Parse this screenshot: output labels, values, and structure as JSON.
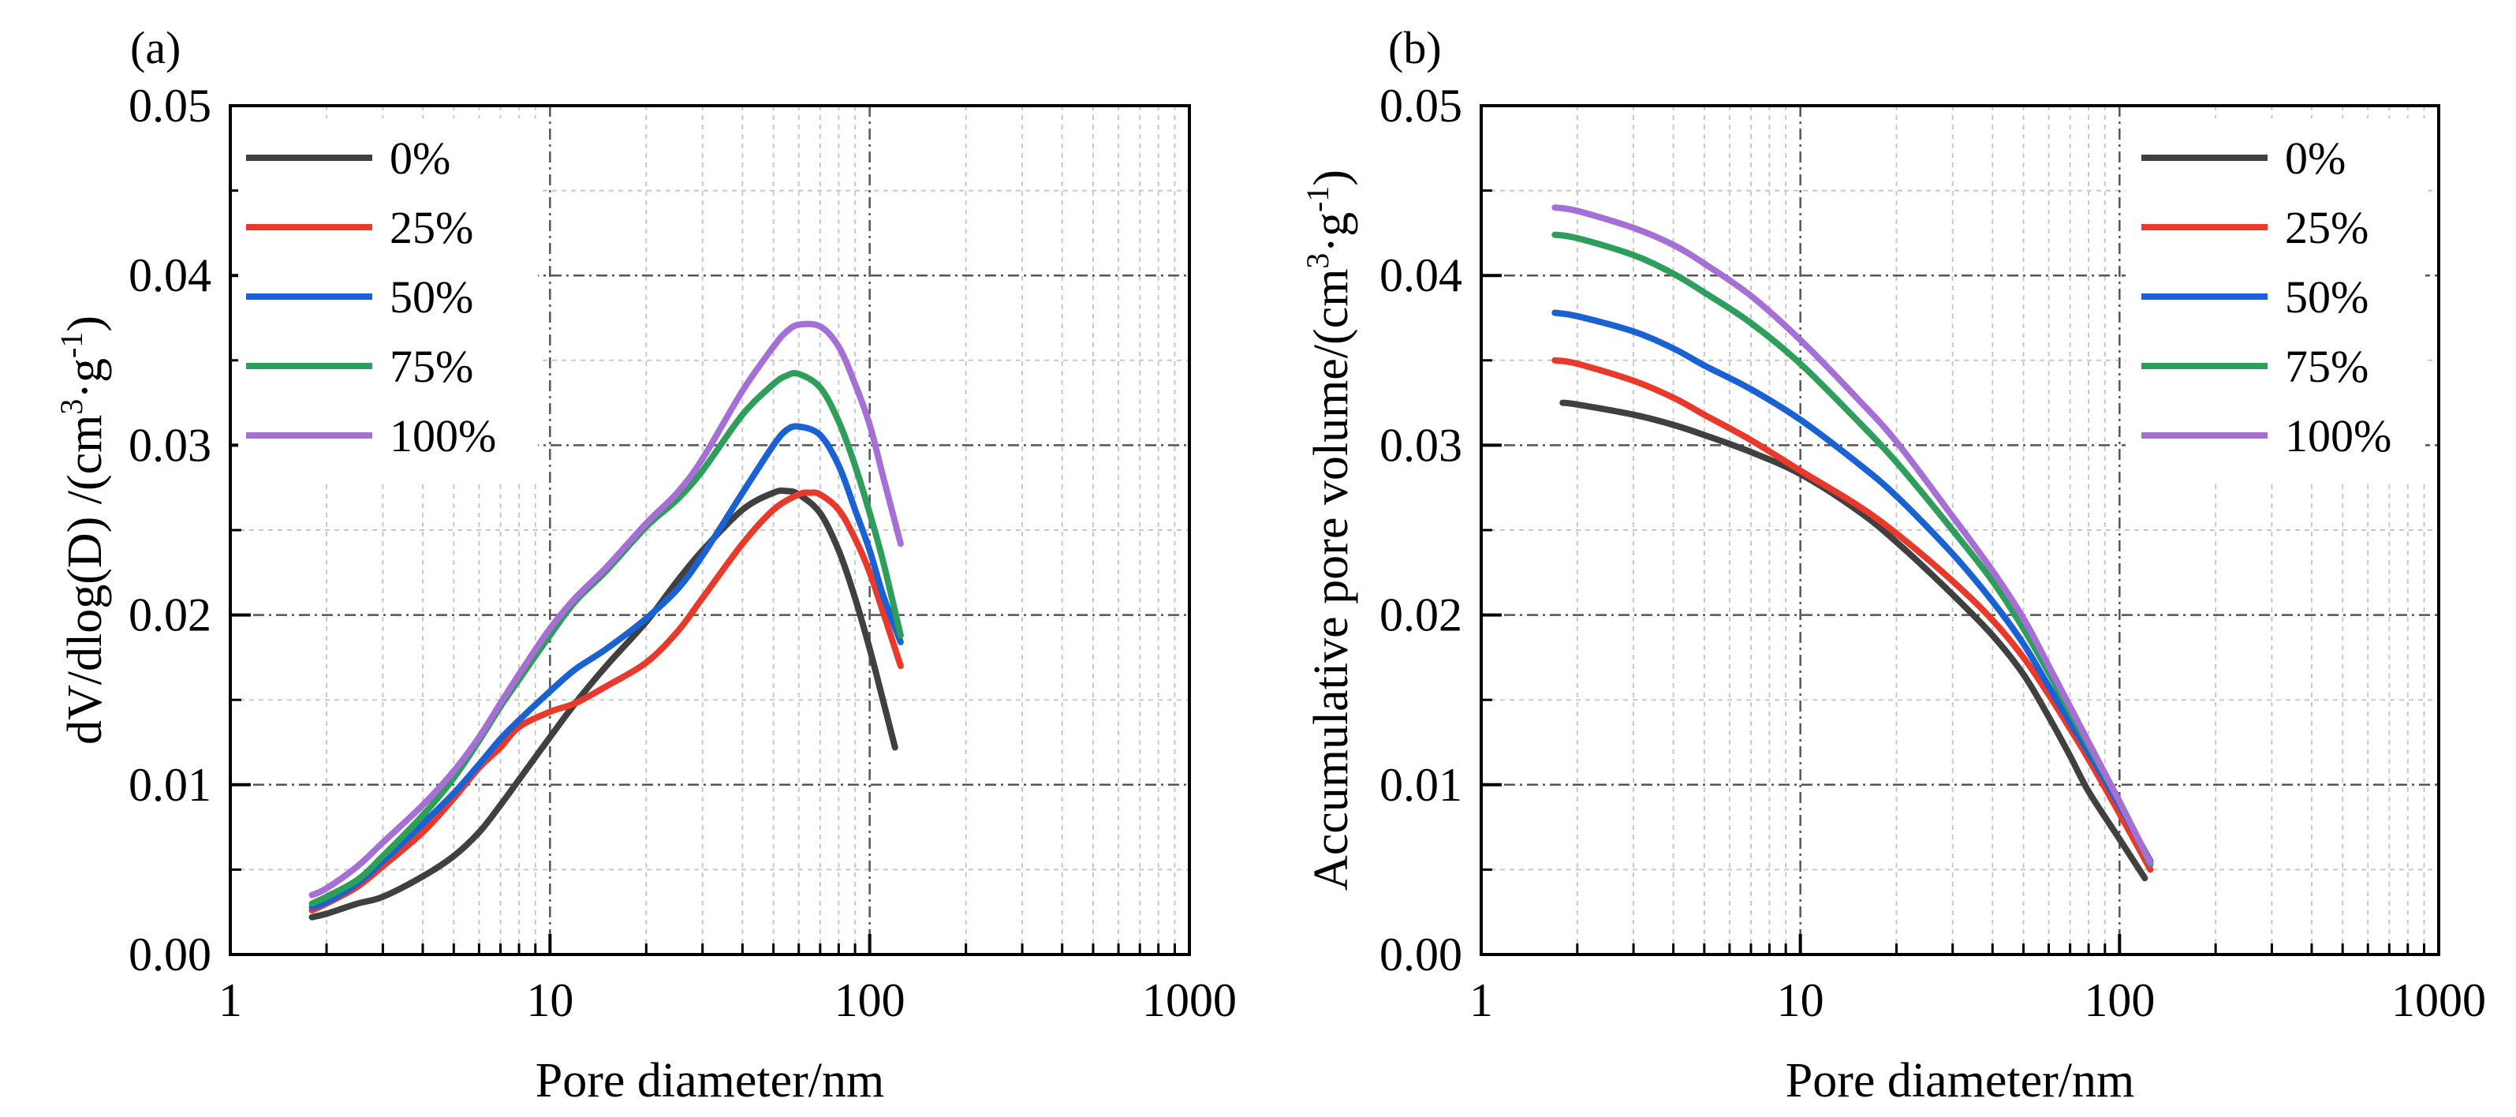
{
  "chart_data": [
    {
      "panel_label": "(a)",
      "type": "line",
      "xlabel": "Pore diameter/nm",
      "ylabel": {
        "main": "dV/dlog(D) /(cm",
        "sup1": "3",
        "mid": "·g",
        "sup2": "-1",
        "end": ")"
      },
      "xscale": "log",
      "xlim": [
        1,
        1000
      ],
      "ylim": [
        0,
        0.05
      ],
      "x_ticks": [
        "1",
        "10",
        "100",
        "1000"
      ],
      "y_ticks": [
        "0.00",
        "0.01",
        "0.02",
        "0.03",
        "0.04",
        "0.05"
      ],
      "legend": {
        "placement": "top-left",
        "entries": [
          "0%",
          "25%",
          "50%",
          "75%",
          "100%"
        ]
      },
      "grid": true,
      "series": [
        {
          "name": "0%",
          "color": "#404040",
          "x": [
            1.8,
            2,
            2.5,
            3,
            4,
            5,
            6,
            7,
            8,
            10,
            12,
            15,
            20,
            25,
            30,
            40,
            50,
            55,
            60,
            70,
            80,
            90,
            100,
            110,
            120
          ],
          "y": [
            0.0022,
            0.0024,
            0.003,
            0.0034,
            0.0046,
            0.0058,
            0.0072,
            0.0088,
            0.0103,
            0.0128,
            0.0148,
            0.017,
            0.0196,
            0.022,
            0.0238,
            0.0262,
            0.0272,
            0.0273,
            0.0271,
            0.026,
            0.0238,
            0.021,
            0.018,
            0.015,
            0.0122
          ]
        },
        {
          "name": "25%",
          "color": "#e8392b",
          "x": [
            1.8,
            2,
            2.5,
            3,
            4,
            5,
            6,
            7,
            8,
            10,
            12,
            15,
            20,
            25,
            30,
            40,
            50,
            60,
            65,
            70,
            80,
            90,
            100,
            110,
            125
          ],
          "y": [
            0.0026,
            0.003,
            0.004,
            0.0052,
            0.0072,
            0.0092,
            0.011,
            0.0122,
            0.0134,
            0.0143,
            0.0148,
            0.0158,
            0.0172,
            0.019,
            0.021,
            0.0242,
            0.0262,
            0.0271,
            0.0272,
            0.0271,
            0.0262,
            0.0245,
            0.0225,
            0.0202,
            0.017
          ]
        },
        {
          "name": "50%",
          "color": "#1a62d4",
          "x": [
            1.8,
            2,
            2.5,
            3,
            4,
            5,
            6,
            7,
            8,
            10,
            12,
            15,
            20,
            25,
            30,
            40,
            50,
            55,
            60,
            70,
            80,
            90,
            100,
            110,
            125
          ],
          "y": [
            0.0028,
            0.0031,
            0.0042,
            0.0055,
            0.0077,
            0.0095,
            0.0112,
            0.0127,
            0.0138,
            0.0155,
            0.0168,
            0.018,
            0.0198,
            0.0215,
            0.0235,
            0.0272,
            0.03,
            0.0309,
            0.0311,
            0.0306,
            0.0288,
            0.0262,
            0.0238,
            0.0212,
            0.0184
          ]
        },
        {
          "name": "75%",
          "color": "#2e9e5b",
          "x": [
            1.8,
            2,
            2.5,
            3,
            4,
            5,
            6,
            7,
            8,
            10,
            12,
            15,
            20,
            25,
            30,
            40,
            50,
            55,
            60,
            70,
            80,
            90,
            100,
            110,
            125
          ],
          "y": [
            0.003,
            0.0034,
            0.0044,
            0.0058,
            0.0082,
            0.0104,
            0.0126,
            0.0146,
            0.0162,
            0.0188,
            0.0208,
            0.0226,
            0.0252,
            0.0268,
            0.0285,
            0.0318,
            0.0336,
            0.0341,
            0.0342,
            0.0334,
            0.0314,
            0.0288,
            0.026,
            0.0232,
            0.0188
          ]
        },
        {
          "name": "100%",
          "color": "#a66fd6",
          "x": [
            1.8,
            2,
            2.5,
            3,
            4,
            5,
            6,
            7,
            8,
            10,
            12,
            15,
            20,
            25,
            30,
            40,
            50,
            55,
            60,
            70,
            80,
            90,
            100,
            110,
            125
          ],
          "y": [
            0.0035,
            0.0039,
            0.0052,
            0.0066,
            0.0088,
            0.0108,
            0.0128,
            0.0148,
            0.0165,
            0.0192,
            0.021,
            0.0228,
            0.0254,
            0.0272,
            0.0292,
            0.0332,
            0.0358,
            0.0367,
            0.0371,
            0.037,
            0.0358,
            0.0336,
            0.0312,
            0.0282,
            0.0242
          ]
        }
      ]
    },
    {
      "panel_label": "(b)",
      "type": "line",
      "xlabel": "Pore diameter/nm",
      "ylabel": {
        "main": "Accumulative pore volume/(cm",
        "sup1": "3",
        "mid": "·g",
        "sup2": "-1",
        "end": ")"
      },
      "xscale": "log",
      "xlim": [
        1,
        1000
      ],
      "ylim": [
        0,
        0.05
      ],
      "x_ticks": [
        "1",
        "10",
        "100",
        "1000"
      ],
      "y_ticks": [
        "0.00",
        "0.01",
        "0.02",
        "0.03",
        "0.04",
        "0.05"
      ],
      "legend": {
        "placement": "top-right",
        "entries": [
          "0%",
          "25%",
          "50%",
          "75%",
          "100%"
        ]
      },
      "grid": true,
      "series": [
        {
          "name": "0%",
          "color": "#404040",
          "x": [
            1.8,
            2,
            3,
            4,
            5,
            7,
            10,
            15,
            20,
            30,
            40,
            50,
            60,
            70,
            80,
            100,
            120
          ],
          "y": [
            0.0325,
            0.0324,
            0.0318,
            0.0312,
            0.0306,
            0.0296,
            0.0283,
            0.0262,
            0.0243,
            0.0212,
            0.0188,
            0.0165,
            0.014,
            0.0117,
            0.0096,
            0.0068,
            0.0045
          ]
        },
        {
          "name": "25%",
          "color": "#e8392b",
          "x": [
            1.7,
            2,
            3,
            4,
            5,
            7,
            10,
            15,
            20,
            30,
            40,
            50,
            60,
            70,
            80,
            100,
            125
          ],
          "y": [
            0.035,
            0.0348,
            0.0338,
            0.0328,
            0.0318,
            0.0303,
            0.0285,
            0.0265,
            0.0248,
            0.022,
            0.0197,
            0.0175,
            0.0153,
            0.0133,
            0.0115,
            0.0083,
            0.005
          ]
        },
        {
          "name": "50%",
          "color": "#1a62d4",
          "x": [
            1.7,
            2,
            3,
            4,
            5,
            7,
            10,
            15,
            20,
            30,
            40,
            50,
            60,
            70,
            80,
            100,
            125
          ],
          "y": [
            0.0378,
            0.0376,
            0.0367,
            0.0357,
            0.0347,
            0.0333,
            0.0315,
            0.029,
            0.027,
            0.0236,
            0.0208,
            0.0183,
            0.0158,
            0.0137,
            0.0119,
            0.0088,
            0.0055
          ]
        },
        {
          "name": "75%",
          "color": "#2e9e5b",
          "x": [
            1.7,
            2,
            3,
            4,
            5,
            7,
            10,
            15,
            20,
            30,
            40,
            50,
            60,
            70,
            80,
            100,
            125
          ],
          "y": [
            0.0424,
            0.0422,
            0.0412,
            0.0401,
            0.039,
            0.0372,
            0.0348,
            0.0315,
            0.029,
            0.025,
            0.022,
            0.0192,
            0.0166,
            0.0143,
            0.0123,
            0.009,
            0.0053
          ]
        },
        {
          "name": "100%",
          "color": "#a66fd6",
          "x": [
            1.7,
            2,
            3,
            4,
            5,
            7,
            10,
            15,
            20,
            30,
            40,
            50,
            60,
            70,
            80,
            100,
            125
          ],
          "y": [
            0.044,
            0.0438,
            0.0428,
            0.0418,
            0.0407,
            0.0388,
            0.0362,
            0.0328,
            0.0302,
            0.0258,
            0.0226,
            0.0198,
            0.017,
            0.0146,
            0.0125,
            0.009,
            0.0054
          ]
        }
      ]
    }
  ]
}
